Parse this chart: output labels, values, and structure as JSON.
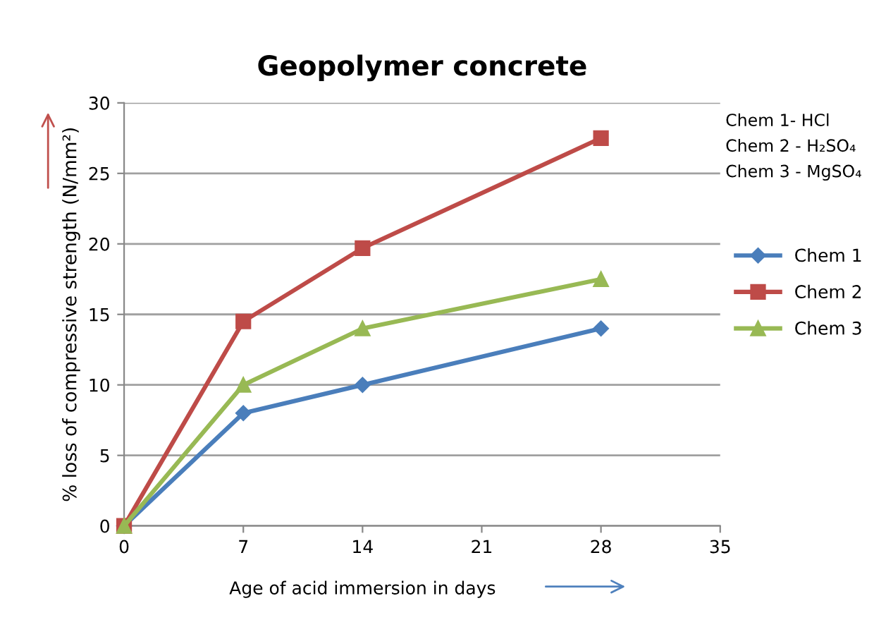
{
  "chart_data": {
    "type": "line",
    "title": "Geopolymer concrete",
    "xlabel": "Age of acid immersion in days",
    "ylabel": "% loss of compressive strength (N/mm²)",
    "x": [
      0,
      7,
      14,
      28
    ],
    "series": [
      {
        "name": "Chem 1",
        "color": "#4a7ebb",
        "marker": "diamond",
        "values": [
          0,
          8,
          10,
          14
        ]
      },
      {
        "name": "Chem 2",
        "color": "#be4b48",
        "marker": "square",
        "values": [
          0,
          14.5,
          19.7,
          27.5
        ]
      },
      {
        "name": "Chem 3",
        "color": "#98b954",
        "marker": "triangle",
        "values": [
          0,
          10,
          14,
          17.5
        ]
      }
    ],
    "annotations": [
      "Chem 1- HCl",
      "Chem 2 - H₂SO₄",
      "Chem 3 - MgSO₄"
    ],
    "xlim": [
      0,
      35
    ],
    "xticks": [
      0,
      7,
      14,
      21,
      28,
      35
    ],
    "ylim": [
      0,
      30
    ],
    "yticks": [
      0,
      5,
      10,
      15,
      20,
      25,
      30
    ],
    "grid": "y",
    "legend": "right",
    "line_style": "solid"
  }
}
